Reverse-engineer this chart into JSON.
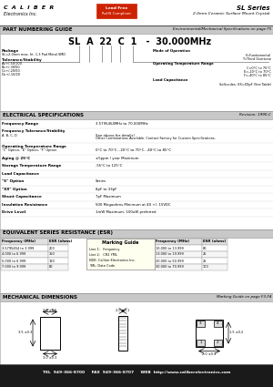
{
  "title_company": "C  A  L  I  B  E  R",
  "title_sub": "Electronics Inc.",
  "rohs_line1": "Lead Free",
  "rohs_line2": "RoHS Compliant",
  "series_title": "SL Series",
  "series_sub": "2.0mm Ceramic Surface Mount Crystal",
  "section1_title": "PART NUMBERING GUIDE",
  "section1_right": "Environmental/Mechanical Specifications on page F5",
  "part_label": "SL  A  22  C  1   -  30.000MHz",
  "pkg_label": "Package",
  "pkg_desc": "SL=2.0mm max. ht. 1.3 Pad Metal SMD",
  "tol_label": "Tolerance/Stability",
  "tol_a": "A=+/-50/100",
  "tol_b": "B=+/-30/50",
  "tol_c": "C=+/-20/50",
  "tol_d": "D=+/-10/20",
  "mode_label": "Mode of Operation",
  "mode_f": "F=Fundamental",
  "mode_t": "T=Third Overtone",
  "op_temp_label": "Operating Temperature Range",
  "op_temp_c": "C=0°C to 70°C",
  "op_temp_e": "E=-20°C to 70°C",
  "op_temp_f": "F=-40°C to 85°C",
  "load_cap_label": "Load Capacitance",
  "load_cap_desc": "Softcodes: XX=XXpF (See Table)",
  "section2_title": "ELECTRICAL SPECIFICATIONS",
  "section2_right": "Revision: 1990-C",
  "freq_range_label": "Frequency Range",
  "freq_range_val": "3.5795454MHz to 70.000MHz",
  "freq_tol_label": "Frequency Tolerance/Stability",
  "freq_tol_sub": "A, B, C, D",
  "freq_tol_val1": "See above for details!",
  "freq_tol_val2": "Other Combinations Available. Contact Factory for Custom Specifications.",
  "op_temp_range_label": "Operating Temperature Range",
  "op_temp_range_sub": "\"C\" Option, \"E\" Option, \"F\" Option",
  "op_temp_range_val": "0°C to 70°C, -20°C to 70°C, -40°C to 85°C",
  "aging_label": "Aging @ 25°C",
  "aging_val": "±5ppm / year Maximum",
  "storage_label": "Storage Temperature Range",
  "storage_val": "-55°C to 125°C",
  "load_cap2_label": "Load Capacitance",
  "load_s_label": "\"S\" Option",
  "load_s_val": "Series",
  "load_xx_label": "\"XX\" Option",
  "load_xx_val": "8pF to 33pF",
  "shunt_label": "Shunt Capacitance",
  "shunt_val": "7pF Maximum",
  "insul_label": "Insulation Resistance",
  "insul_val": "500 Megaohms Minimum at 40 +/- 15VDC",
  "drive_label": "Drive Level",
  "drive_val": "1mW Maximum; 100uW preferred",
  "section3_title": "EQUIVALENT SERIES RESISTANCE (ESR)",
  "esr_col1": "Frequency (MHz)",
  "esr_col2": "ESR (ohms)",
  "esr_col3": "Frequency (MHz)",
  "esr_col4": "ESR (ohms)",
  "esr_rows_left": [
    [
      "3.5795454 to 3.999",
      "200"
    ],
    [
      "4.000 to 6.999",
      "150"
    ],
    [
      "5.000 to 6.999",
      "120"
    ],
    [
      "7.000 to 9.999",
      "80"
    ]
  ],
  "esr_rows_right": [
    [
      "10.000 to 13.999",
      "80"
    ],
    [
      "13.000 to 19.999",
      "25"
    ],
    [
      "20.000 to 50.999",
      "25"
    ],
    [
      "30.000 to 70.999",
      "100"
    ]
  ],
  "marking_title": "Marking Guide",
  "marking_line1": "Line 1:   Frequency",
  "marking_line2": "Line 2:   CR2 YML",
  "marking_line3": "NOE: Caliber Electronics Inc.",
  "marking_line4": "YML: Date Code",
  "section4_title": "MECHANICAL DIMENSIONS",
  "section4_right": "Marking Guide on page F3-F4",
  "dim1": "2.0 ±0.5",
  "dim2": "3.5 ±0.3",
  "dim3": "3.0 ±0.3",
  "dim4": "2.0 ±0.1",
  "dim5": "1.5 ±0.2",
  "dim6": "H 0 ±0.3",
  "dim7": "2.0 ±0.1",
  "tel": "TEL  949-366-8700",
  "fax": "FAX  949-366-8707",
  "web": "WEB  http://www.caliberelectronics.com",
  "footer_bg": "#1a1a1a",
  "footer_fg": "#ffffff",
  "rohs_bg": "#cc2200",
  "section_hdr_bg": "#c8c8c8",
  "section_hdr_dark": "#222222",
  "border_col": "#999999"
}
